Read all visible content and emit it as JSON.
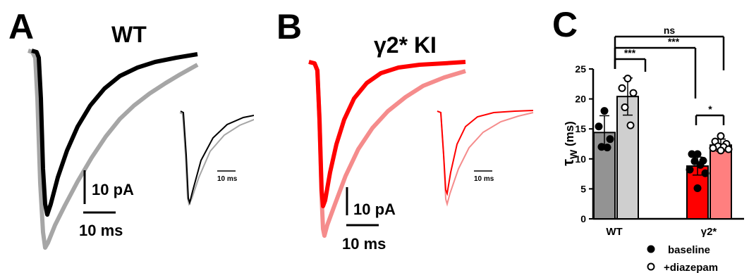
{
  "panel_a": {
    "letter": "A",
    "title": "WT",
    "scale_current": "10 pA",
    "scale_time": "10 ms",
    "inset_scale_time": "10 ms",
    "colors": {
      "baseline": "#000000",
      "diazepam": "#a6a6a6"
    }
  },
  "panel_b": {
    "letter": "B",
    "title": "γ2* KI",
    "scale_current": "10 pA",
    "scale_time": "10 ms",
    "inset_scale_time": "10 ms",
    "colors": {
      "baseline": "#ff0000",
      "diazepam": "#f58c8c"
    }
  },
  "panel_c": {
    "letter": "C"
  },
  "chart_data": {
    "type": "bar",
    "ylabel": "τw (ms)",
    "ylabel_main": "τ",
    "ylabel_sub": "W",
    "ylabel_unit": " (ms)",
    "ylim": [
      0,
      25
    ],
    "yticks": [
      "0",
      "5",
      "10",
      "15",
      "20",
      "25"
    ],
    "categories": [
      "WT",
      "γ2*"
    ],
    "series": [
      {
        "name": "baseline",
        "marker": "filled",
        "values": [
          14.4,
          8.8
        ],
        "errors": [
          2.8,
          1.5
        ],
        "colors": [
          "#939393",
          "#ff0000"
        ],
        "points": [
          [
            18.0,
            15.4,
            13.3,
            12.0,
            11.9
          ],
          [
            10.8,
            10.8,
            9.7,
            9.6,
            9.0,
            8.2,
            7.6,
            5.1
          ]
        ]
      },
      {
        "name": "+diazepam",
        "marker": "open",
        "values": [
          20.4,
          12.3
        ],
        "errors": [
          3.1,
          1.0
        ],
        "colors": [
          "#cfcfcf",
          "#ff7f7f"
        ],
        "points": [
          [
            23.4,
            21.8,
            21.0,
            18.6,
            15.6
          ],
          [
            13.8,
            12.9,
            12.5,
            12.1,
            12.0,
            11.8,
            11.6,
            11.4
          ]
        ]
      }
    ],
    "significance": [
      "ns",
      "***",
      "***",
      "*"
    ],
    "legend": [
      {
        "marker": "filled",
        "label": "baseline"
      },
      {
        "marker": "open",
        "label": "+diazepam"
      }
    ]
  }
}
